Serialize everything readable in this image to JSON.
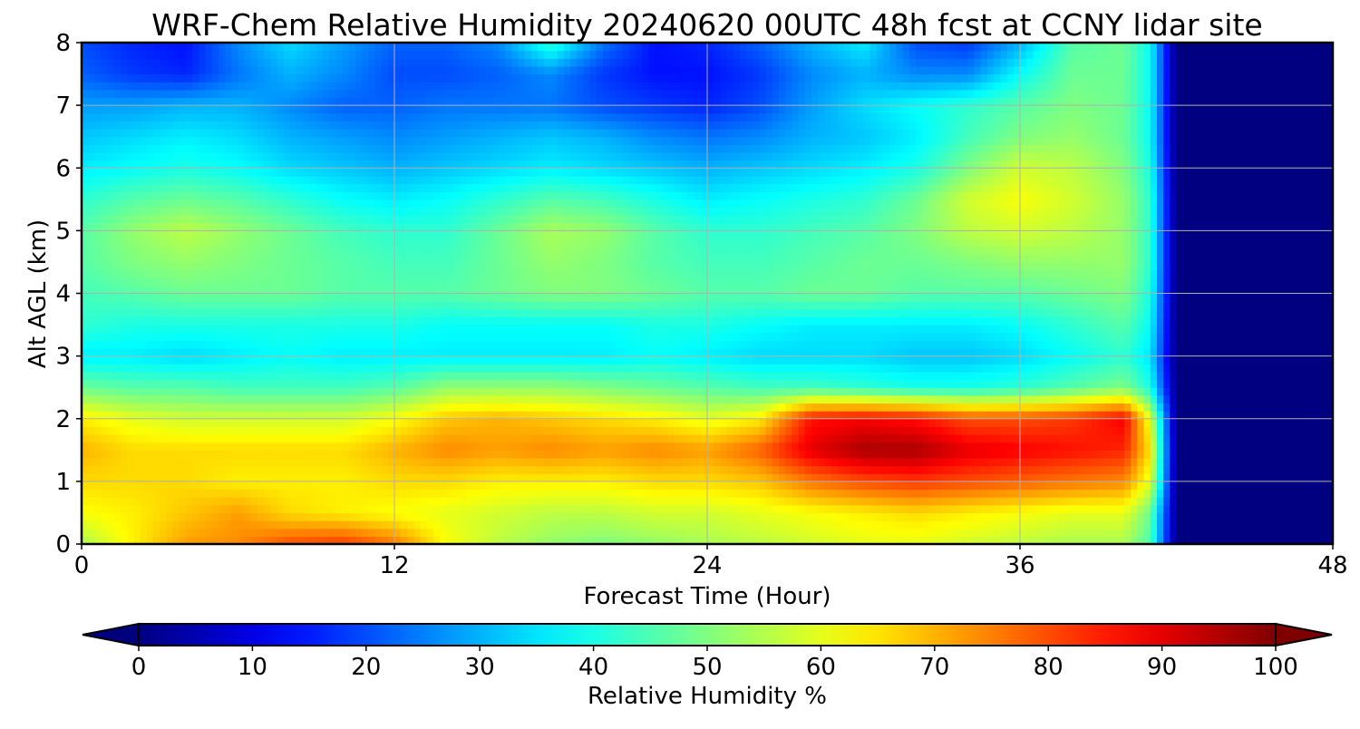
{
  "chart_data": {
    "type": "heatmap",
    "title": "WRF-Chem Relative Humidity 20240620 00UTC 48h fcst at CCNY lidar site",
    "xlabel": "Forecast Time (Hour)",
    "ylabel": "Alt AGL (km)",
    "xlim": [
      0,
      48
    ],
    "ylim": [
      0,
      8
    ],
    "x_ticks": [
      0,
      12,
      24,
      36,
      48
    ],
    "y_ticks": [
      0,
      1,
      2,
      3,
      4,
      5,
      6,
      7,
      8
    ],
    "grid": true,
    "colormap": "jet",
    "colorbar": {
      "label": "Relative Humidity %",
      "min": 0,
      "max": 100,
      "ticks": [
        0,
        10,
        20,
        30,
        40,
        50,
        60,
        70,
        80,
        90,
        100
      ],
      "orientation": "horizontal",
      "extend": "both"
    },
    "x": [
      0,
      2,
      4,
      6,
      8,
      10,
      12,
      14,
      16,
      18,
      20,
      22,
      24,
      26,
      28,
      30,
      32,
      34,
      36,
      38,
      40,
      41,
      42,
      44,
      46,
      48
    ],
    "y": [
      0,
      0.5,
      1,
      1.5,
      2,
      2.5,
      3,
      3.5,
      4,
      4.5,
      5,
      5.5,
      6,
      6.5,
      7,
      7.5,
      8
    ],
    "z": [
      [
        54,
        64,
        72,
        74,
        80,
        82,
        76,
        62,
        56,
        52,
        50,
        52,
        54,
        56,
        58,
        60,
        60,
        58,
        56,
        54,
        54,
        45,
        0,
        0,
        0,
        0
      ],
      [
        62,
        64,
        68,
        72,
        66,
        64,
        62,
        60,
        58,
        56,
        56,
        58,
        58,
        60,
        62,
        64,
        66,
        64,
        62,
        60,
        60,
        48,
        0,
        0,
        0,
        0
      ],
      [
        66,
        66,
        66,
        64,
        64,
        64,
        66,
        66,
        64,
        64,
        64,
        66,
        66,
        68,
        76,
        80,
        82,
        80,
        78,
        76,
        74,
        60,
        0,
        0,
        0,
        0
      ],
      [
        70,
        66,
        66,
        66,
        66,
        66,
        70,
        74,
        72,
        74,
        72,
        74,
        72,
        78,
        90,
        96,
        96,
        90,
        88,
        86,
        84,
        65,
        0,
        0,
        0,
        0
      ],
      [
        64,
        60,
        58,
        58,
        58,
        58,
        62,
        68,
        70,
        68,
        66,
        64,
        60,
        64,
        86,
        88,
        86,
        80,
        80,
        82,
        88,
        60,
        0,
        0,
        0,
        0
      ],
      [
        48,
        46,
        46,
        44,
        44,
        44,
        46,
        52,
        52,
        52,
        50,
        48,
        46,
        44,
        44,
        42,
        40,
        40,
        42,
        46,
        50,
        40,
        0,
        0,
        0,
        0
      ],
      [
        36,
        36,
        34,
        36,
        38,
        36,
        36,
        36,
        36,
        36,
        36,
        38,
        36,
        34,
        34,
        34,
        32,
        32,
        34,
        38,
        42,
        35,
        0,
        0,
        0,
        0
      ],
      [
        42,
        40,
        40,
        40,
        40,
        40,
        40,
        38,
        38,
        38,
        38,
        40,
        40,
        38,
        36,
        36,
        36,
        36,
        38,
        42,
        46,
        38,
        0,
        0,
        0,
        0
      ],
      [
        44,
        46,
        48,
        48,
        48,
        46,
        46,
        46,
        48,
        50,
        50,
        48,
        46,
        46,
        48,
        48,
        46,
        46,
        46,
        48,
        50,
        40,
        0,
        0,
        0,
        0
      ],
      [
        46,
        50,
        52,
        50,
        48,
        46,
        44,
        44,
        48,
        52,
        50,
        46,
        44,
        44,
        46,
        48,
        48,
        50,
        52,
        52,
        52,
        42,
        0,
        0,
        0,
        0
      ],
      [
        46,
        52,
        56,
        52,
        48,
        44,
        42,
        42,
        48,
        54,
        52,
        46,
        42,
        42,
        44,
        46,
        50,
        56,
        58,
        56,
        52,
        42,
        0,
        0,
        0,
        0
      ],
      [
        42,
        46,
        48,
        46,
        42,
        38,
        36,
        38,
        42,
        46,
        44,
        40,
        36,
        38,
        40,
        42,
        48,
        58,
        62,
        58,
        52,
        42,
        0,
        0,
        0,
        0
      ],
      [
        36,
        38,
        40,
        38,
        34,
        32,
        30,
        32,
        34,
        36,
        34,
        32,
        30,
        32,
        34,
        36,
        40,
        50,
        58,
        56,
        50,
        40,
        0,
        0,
        0,
        0
      ],
      [
        32,
        34,
        36,
        34,
        30,
        28,
        26,
        28,
        30,
        32,
        30,
        26,
        24,
        26,
        30,
        32,
        36,
        44,
        50,
        52,
        48,
        38,
        0,
        0,
        0,
        0
      ],
      [
        28,
        28,
        30,
        30,
        26,
        22,
        22,
        24,
        24,
        24,
        20,
        18,
        16,
        20,
        28,
        34,
        38,
        42,
        46,
        50,
        48,
        38,
        0,
        0,
        0,
        0
      ],
      [
        22,
        18,
        16,
        24,
        30,
        26,
        20,
        20,
        22,
        26,
        18,
        14,
        14,
        18,
        26,
        30,
        26,
        26,
        38,
        48,
        48,
        38,
        0,
        0,
        0,
        0
      ],
      [
        20,
        16,
        14,
        26,
        34,
        28,
        22,
        22,
        26,
        42,
        24,
        14,
        16,
        22,
        30,
        36,
        20,
        18,
        30,
        46,
        48,
        38,
        0,
        0,
        0,
        0
      ]
    ]
  }
}
